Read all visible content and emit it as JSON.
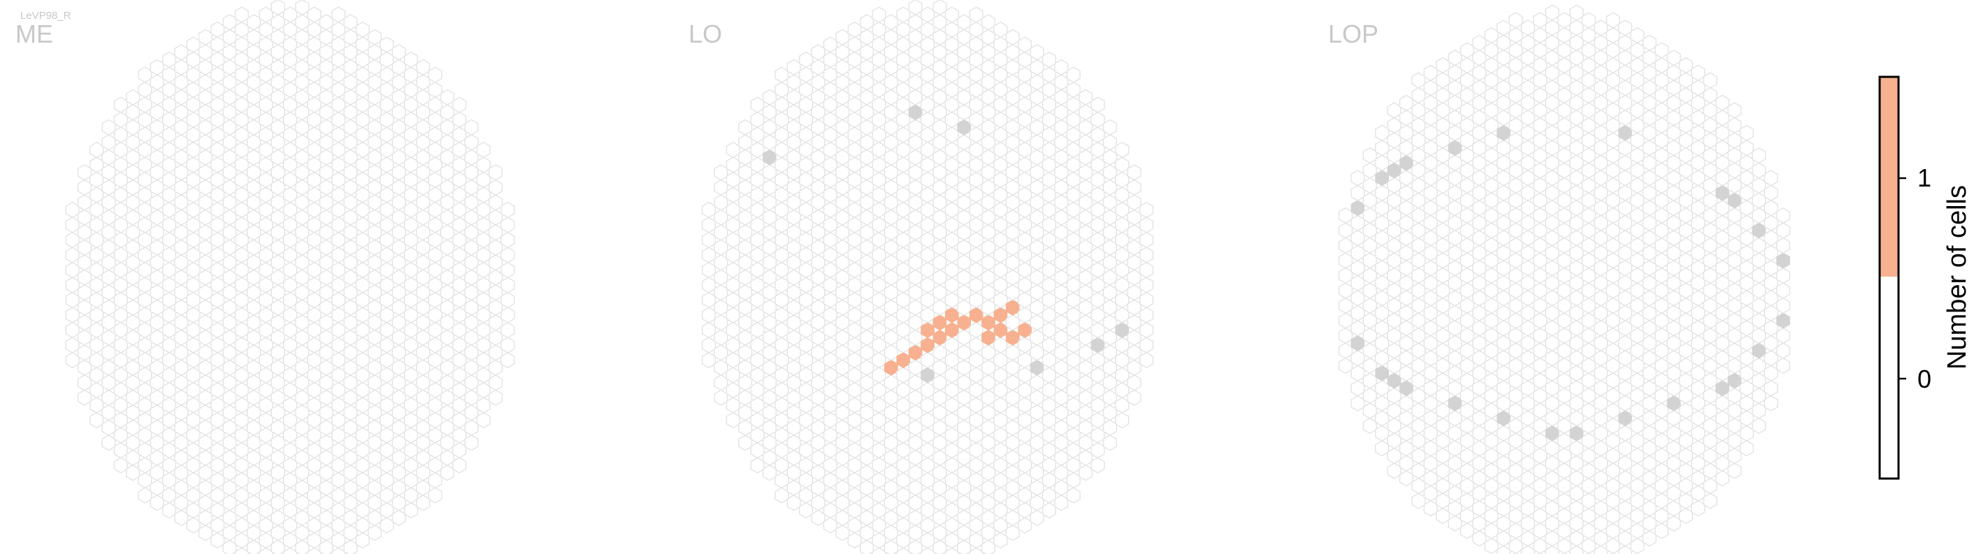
{
  "figure_tag": "LeVP98_R",
  "chart_data": {
    "type": "heatmap",
    "mark": "hexagonal column grid",
    "panels": [
      {
        "name": "ME",
        "filled_cells": []
      },
      {
        "name": "LO",
        "filled_cells": [
          {
            "hex": [
              -3,
              -11
            ],
            "count": 1
          },
          {
            "hex": [
              -2,
              -10
            ],
            "count": 1
          },
          {
            "hex": [
              -1,
              -9
            ],
            "count": 1
          },
          {
            "hex": [
              0,
              -8
            ],
            "count": 1
          },
          {
            "hex": [
              1,
              -7
            ],
            "count": 1
          },
          {
            "hex": [
              2,
              -6
            ],
            "count": 1
          },
          {
            "hex": [
              3,
              -5
            ],
            "count": 1
          },
          {
            "hex": [
              4,
              -4
            ],
            "count": 1
          },
          {
            "hex": [
              0,
              -6
            ],
            "count": 1
          },
          {
            "hex": [
              1,
              -5
            ],
            "count": 1
          },
          {
            "hex": [
              2,
              -4
            ],
            "count": 1
          },
          {
            "hex": [
              -1,
              -10
            ],
            "count": 1
          },
          {
            "hex": [
              0,
              -9
            ],
            "count": 1
          },
          {
            "hex": [
              1,
              -8
            ],
            "count": 1
          },
          {
            "hex": [
              2,
              -7
            ],
            "count": 1
          },
          {
            "hex": [
              3,
              -6
            ],
            "count": 1
          },
          {
            "hex": [
              4,
              -5
            ],
            "count": 1
          },
          {
            "hex": [
              5,
              -4
            ],
            "count": 1
          },
          {
            "hex": [
              6,
              -3
            ],
            "count": 1
          },
          {
            "hex": [
              5,
              -5
            ],
            "count": 1
          },
          {
            "hex": [
              6,
              -4
            ],
            "count": 1
          },
          {
            "hex": [
              7,
              -3
            ],
            "count": 1
          },
          {
            "hex": [
              3,
              -8
            ],
            "count": 1
          },
          {
            "hex": [
              4,
              -7
            ],
            "count": 1
          },
          {
            "hex": [
              5,
              -6
            ],
            "count": 1
          },
          {
            "hex": [
              6,
              -5
            ],
            "count": 1
          },
          {
            "hex": [
              7,
              -4
            ],
            "count": 1
          },
          {
            "hex": [
              8,
              -3
            ],
            "count": 1
          },
          {
            "hex": [
              5,
              -7
            ],
            "count": 1
          },
          {
            "hex": [
              6,
              -6
            ],
            "count": 1
          },
          {
            "hex": [
              8,
              -5
            ],
            "count": 1
          },
          {
            "hex": [
              9,
              -4
            ],
            "count": 1
          },
          {
            "hex": [
              7,
              -7
            ],
            "count": 1
          },
          {
            "hex": [
              8,
              -6
            ],
            "count": 1
          },
          {
            "hex": [
              10,
              -5
            ],
            "count": 1
          }
        ]
      },
      {
        "name": "LOP",
        "filled_cells": []
      }
    ],
    "colorbar": {
      "label": "Number of cells",
      "ticks": [
        0,
        1
      ],
      "range": [
        -0.5,
        1.5
      ],
      "bins": [
        {
          "range": [
            -0.5,
            0.5
          ],
          "color": "#ffffff"
        },
        {
          "range": [
            0.5,
            1.5
          ],
          "color": "#f7b190"
        }
      ]
    },
    "colors": {
      "empty_column_outline": "#e3e3e3",
      "uncovered_column": "#d3d3d3",
      "count_1": "#f7b190"
    }
  }
}
